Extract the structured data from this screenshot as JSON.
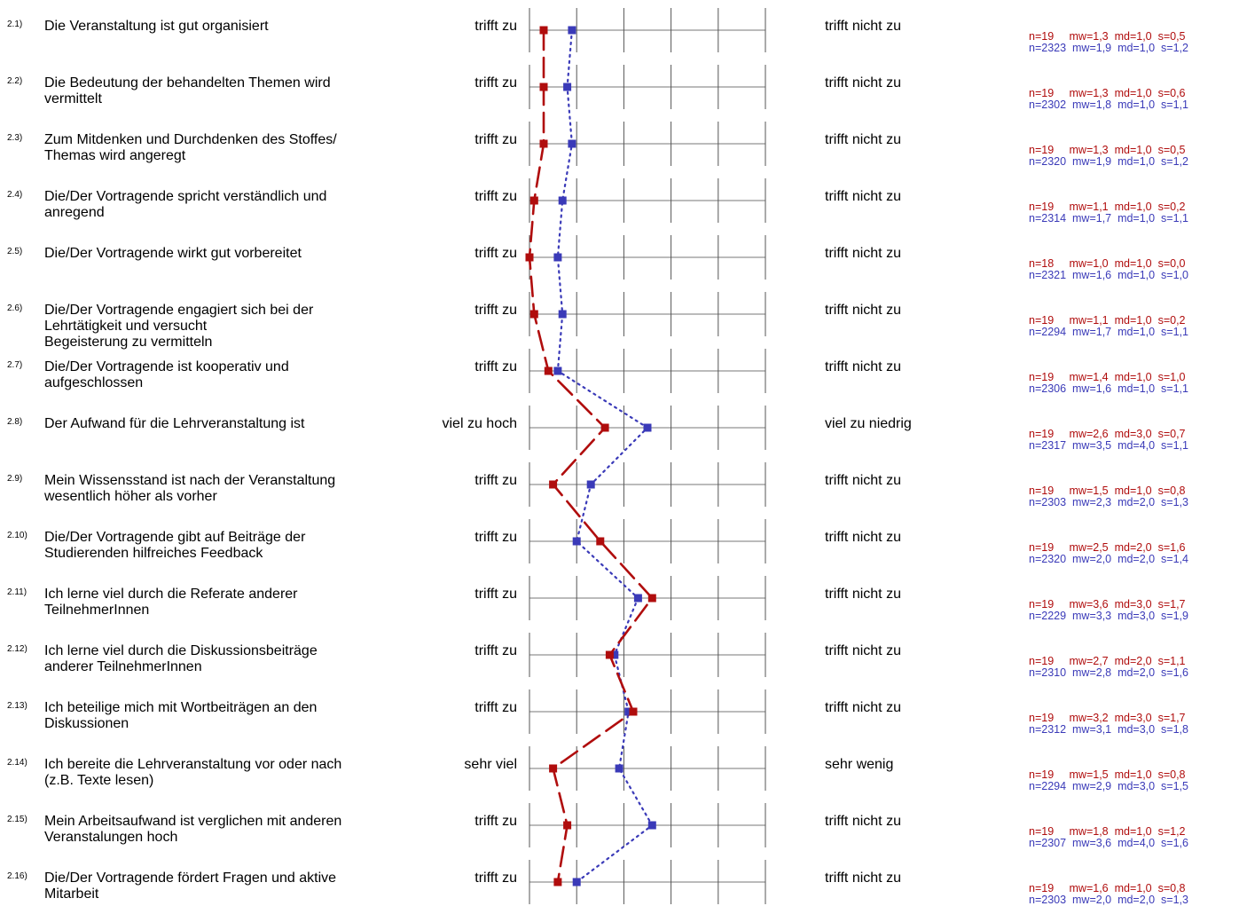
{
  "colors": {
    "course": "#b00d0d",
    "all": "#3a3ab8",
    "grid": "#555555"
  },
  "chart_data": {
    "type": "line",
    "scale": [
      1,
      2,
      3,
      4,
      5,
      6
    ],
    "series": [
      {
        "key": "course"
      },
      {
        "key": "all"
      }
    ],
    "items": [
      {
        "num": "2.1)",
        "lines": [
          "Die Veranstaltung ist gut organisiert"
        ],
        "left": "trifft zu",
        "right": "trifft nicht zu",
        "course": 1.3,
        "all": 1.9,
        "stat_course": "n=19     mw=1,3  md=1,0  s=0,5",
        "stat_all": "n=2323  mw=1,9  md=1,0  s=1,2"
      },
      {
        "num": "2.2)",
        "lines": [
          "Die Bedeutung der behandelten Themen wird",
          "vermittelt"
        ],
        "left": "trifft zu",
        "right": "trifft nicht zu",
        "course": 1.3,
        "all": 1.8,
        "stat_course": "n=19     mw=1,3  md=1,0  s=0,6",
        "stat_all": "n=2302  mw=1,8  md=1,0  s=1,1"
      },
      {
        "num": "2.3)",
        "lines": [
          "Zum Mitdenken und Durchdenken des Stoffes/",
          "Themas wird angeregt"
        ],
        "left": "trifft zu",
        "right": "trifft nicht zu",
        "course": 1.3,
        "all": 1.9,
        "stat_course": "n=19     mw=1,3  md=1,0  s=0,5",
        "stat_all": "n=2320  mw=1,9  md=1,0  s=1,2"
      },
      {
        "num": "2.4)",
        "lines": [
          "Die/Der Vortragende spricht verständlich und",
          "anregend"
        ],
        "left": "trifft zu",
        "right": "trifft nicht zu",
        "course": 1.1,
        "all": 1.7,
        "stat_course": "n=19     mw=1,1  md=1,0  s=0,2",
        "stat_all": "n=2314  mw=1,7  md=1,0  s=1,1"
      },
      {
        "num": "2.5)",
        "lines": [
          "Die/Der Vortragende wirkt gut vorbereitet"
        ],
        "left": "trifft zu",
        "right": "trifft nicht zu",
        "course": 1.0,
        "all": 1.6,
        "stat_course": "n=18     mw=1,0  md=1,0  s=0,0",
        "stat_all": "n=2321  mw=1,6  md=1,0  s=1,0"
      },
      {
        "num": "2.6)",
        "lines": [
          "Die/Der Vortragende engagiert sich bei der",
          "Lehrtätigkeit und versucht",
          "Begeisterung zu vermitteln"
        ],
        "left": "trifft zu",
        "right": "trifft nicht zu",
        "course": 1.1,
        "all": 1.7,
        "stat_course": "n=19     mw=1,1  md=1,0  s=0,2",
        "stat_all": "n=2294  mw=1,7  md=1,0  s=1,1"
      },
      {
        "num": "2.7)",
        "lines": [
          "Die/Der Vortragende ist kooperativ und",
          "aufgeschlossen"
        ],
        "left": "trifft zu",
        "right": "trifft nicht zu",
        "course": 1.4,
        "all": 1.6,
        "stat_course": "n=19     mw=1,4  md=1,0  s=1,0",
        "stat_all": "n=2306  mw=1,6  md=1,0  s=1,1"
      },
      {
        "num": "2.8)",
        "lines": [
          "Der Aufwand für die Lehrveranstaltung ist"
        ],
        "left": "viel zu hoch",
        "right": "viel zu niedrig",
        "course": 2.6,
        "all": 3.5,
        "stat_course": "n=19     mw=2,6  md=3,0  s=0,7",
        "stat_all": "n=2317  mw=3,5  md=4,0  s=1,1"
      },
      {
        "num": "2.9)",
        "lines": [
          "Mein Wissensstand ist nach der Veranstaltung",
          "wesentlich höher als vorher"
        ],
        "left": "trifft zu",
        "right": "trifft nicht zu",
        "course": 1.5,
        "all": 2.3,
        "stat_course": "n=19     mw=1,5  md=1,0  s=0,8",
        "stat_all": "n=2303  mw=2,3  md=2,0  s=1,3"
      },
      {
        "num": "2.10)",
        "lines": [
          "Die/Der Vortragende gibt auf Beiträge der",
          "Studierenden hilfreiches Feedback"
        ],
        "left": "trifft zu",
        "right": "trifft nicht zu",
        "course": 2.5,
        "all": 2.0,
        "stat_course": "n=19     mw=2,5  md=2,0  s=1,6",
        "stat_all": "n=2320  mw=2,0  md=2,0  s=1,4"
      },
      {
        "num": "2.11)",
        "lines": [
          "Ich lerne viel durch die Referate anderer",
          "TeilnehmerInnen"
        ],
        "left": "trifft zu",
        "right": "trifft nicht zu",
        "course": 3.6,
        "all": 3.3,
        "stat_course": "n=19     mw=3,6  md=3,0  s=1,7",
        "stat_all": "n=2229  mw=3,3  md=3,0  s=1,9"
      },
      {
        "num": "2.12)",
        "lines": [
          "Ich lerne viel durch die Diskussionsbeiträge",
          "anderer TeilnehmerInnen"
        ],
        "left": "trifft zu",
        "right": "trifft nicht zu",
        "course": 2.7,
        "all": 2.8,
        "stat_course": "n=19     mw=2,7  md=2,0  s=1,1",
        "stat_all": "n=2310  mw=2,8  md=2,0  s=1,6"
      },
      {
        "num": "2.13)",
        "lines": [
          "Ich beteilige mich mit Wortbeiträgen an den",
          "Diskussionen"
        ],
        "left": "trifft zu",
        "right": "trifft nicht zu",
        "course": 3.2,
        "all": 3.1,
        "stat_course": "n=19     mw=3,2  md=3,0  s=1,7",
        "stat_all": "n=2312  mw=3,1  md=3,0  s=1,8"
      },
      {
        "num": "2.14)",
        "lines": [
          "Ich bereite die Lehrveranstaltung vor oder nach",
          "(z.B. Texte lesen)"
        ],
        "left": "sehr viel",
        "right": "sehr wenig",
        "course": 1.5,
        "all": 2.9,
        "stat_course": "n=19     mw=1,5  md=1,0  s=0,8",
        "stat_all": "n=2294  mw=2,9  md=3,0  s=1,5"
      },
      {
        "num": "2.15)",
        "lines": [
          "Mein Arbeitsaufwand ist verglichen mit anderen",
          "Veranstalungen hoch"
        ],
        "left": "trifft zu",
        "right": "trifft nicht zu",
        "course": 1.8,
        "all": 3.6,
        "stat_course": "n=19     mw=1,8  md=1,0  s=1,2",
        "stat_all": "n=2307  mw=3,6  md=4,0  s=1,6"
      },
      {
        "num": "2.16)",
        "lines": [
          "Die/Der Vortragende fördert Fragen und aktive",
          "Mitarbeit"
        ],
        "left": "trifft zu",
        "right": "trifft nicht zu",
        "course": 1.6,
        "all": 2.0,
        "stat_course": "n=19     mw=1,6  md=1,0  s=0,8",
        "stat_all": "n=2303  mw=2,0  md=2,0  s=1,3"
      }
    ]
  }
}
